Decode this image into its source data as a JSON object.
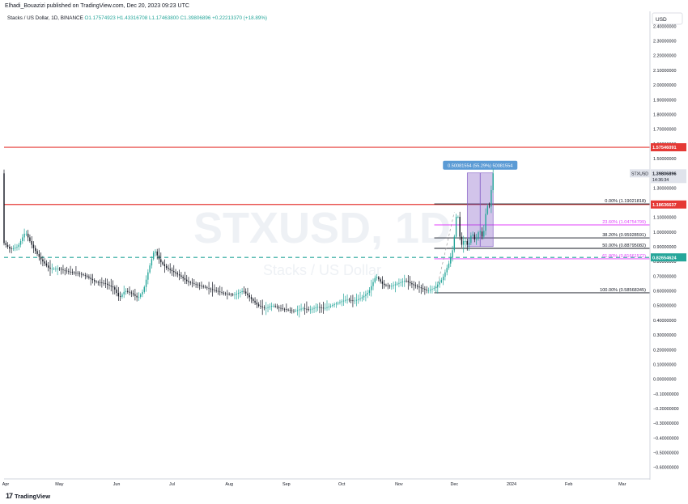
{
  "publisher": "Elhadi_Bouazizi published on TradingView.com, Dec 20, 2023 09:23 UTC",
  "symbol_line": {
    "name": "Stacks / US Dollar, 1D, BINANCE",
    "ohlc": "O1.17574923 H1.43316708 L1.17463800 C1.39806896 +0.22213370 (+18.89%)"
  },
  "currency_label": "USD",
  "watermark": {
    "main": "STXUSD, 1D",
    "sub": "Stacks / US Dollar"
  },
  "footer": {
    "logo_mark": "17",
    "logo_text": "TradingView"
  },
  "colors": {
    "up": "#26a69a",
    "down": "#131722",
    "red_line": "#e53935",
    "fib_pink": "#e040fb",
    "support": "#26a69a",
    "measure": "#7e57c2"
  },
  "chart_data": {
    "type": "candlestick",
    "ylim": [
      -0.68,
      2.5
    ],
    "y_ticks": [
      "2.40000000",
      "2.30000000",
      "2.20000000",
      "2.10000000",
      "2.00000000",
      "1.90000000",
      "1.80000000",
      "1.70000000",
      "1.60000000",
      "1.50000000",
      "1.40000000",
      "1.30000000",
      "1.20000000",
      "1.10000000",
      "1.00000000",
      "0.90000000",
      "0.80000000",
      "0.70000000",
      "0.60000000",
      "0.50000000",
      "0.40000000",
      "0.30000000",
      "0.20000000",
      "0.10000000",
      "0.00000000",
      "−0.10000000",
      "−0.20000000",
      "−0.30000000",
      "−0.40000000",
      "−0.50000000",
      "−0.60000000"
    ],
    "y_tick_values": [
      2.4,
      2.3,
      2.2,
      2.1,
      2.0,
      1.9,
      1.8,
      1.7,
      1.6,
      1.5,
      1.4,
      1.3,
      1.2,
      1.1,
      1.0,
      0.9,
      0.8,
      0.7,
      0.6,
      0.5,
      0.4,
      0.3,
      0.2,
      0.1,
      0.0,
      -0.1,
      -0.2,
      -0.3,
      -0.4,
      -0.5,
      -0.6
    ],
    "x_labels": [
      "Apr",
      "May",
      "Jun",
      "Jul",
      "Aug",
      "Sep",
      "Oct",
      "Nov",
      "Dec",
      "2024",
      "Feb",
      "Mar"
    ],
    "x_label_days": [
      0,
      30,
      61,
      91,
      122,
      153,
      183,
      214,
      244,
      275,
      306,
      335
    ],
    "x_range_days": [
      0,
      350
    ],
    "price_path": [
      [
        0,
        0.93
      ],
      [
        4,
        0.88
      ],
      [
        8,
        0.9
      ],
      [
        12,
        1.0
      ],
      [
        16,
        0.9
      ],
      [
        20,
        0.82
      ],
      [
        25,
        0.75
      ],
      [
        30,
        0.75
      ],
      [
        35,
        0.73
      ],
      [
        40,
        0.72
      ],
      [
        45,
        0.7
      ],
      [
        50,
        0.66
      ],
      [
        55,
        0.65
      ],
      [
        60,
        0.62
      ],
      [
        63,
        0.55
      ],
      [
        66,
        0.6
      ],
      [
        70,
        0.58
      ],
      [
        73,
        0.55
      ],
      [
        76,
        0.6
      ],
      [
        79,
        0.75
      ],
      [
        82,
        0.88
      ],
      [
        85,
        0.8
      ],
      [
        88,
        0.76
      ],
      [
        92,
        0.73
      ],
      [
        96,
        0.7
      ],
      [
        100,
        0.66
      ],
      [
        105,
        0.64
      ],
      [
        110,
        0.62
      ],
      [
        115,
        0.6
      ],
      [
        120,
        0.58
      ],
      [
        125,
        0.57
      ],
      [
        130,
        0.6
      ],
      [
        134,
        0.55
      ],
      [
        138,
        0.5
      ],
      [
        142,
        0.48
      ],
      [
        146,
        0.5
      ],
      [
        150,
        0.48
      ],
      [
        154,
        0.47
      ],
      [
        158,
        0.46
      ],
      [
        162,
        0.48
      ],
      [
        166,
        0.47
      ],
      [
        170,
        0.49
      ],
      [
        174,
        0.48
      ],
      [
        178,
        0.5
      ],
      [
        182,
        0.52
      ],
      [
        186,
        0.54
      ],
      [
        190,
        0.53
      ],
      [
        194,
        0.55
      ],
      [
        198,
        0.59
      ],
      [
        202,
        0.7
      ],
      [
        206,
        0.64
      ],
      [
        210,
        0.63
      ],
      [
        214,
        0.65
      ],
      [
        218,
        0.67
      ],
      [
        222,
        0.64
      ],
      [
        226,
        0.62
      ],
      [
        230,
        0.6
      ],
      [
        234,
        0.62
      ],
      [
        238,
        0.68
      ],
      [
        242,
        0.8
      ],
      [
        244,
        0.9
      ],
      [
        246,
        1.17
      ],
      [
        248,
        0.9
      ],
      [
        250,
        0.95
      ],
      [
        252,
        0.9
      ],
      [
        254,
        1.0
      ],
      [
        256,
        0.93
      ],
      [
        258,
        1.02
      ],
      [
        260,
        0.95
      ],
      [
        262,
        1.18
      ],
      [
        264,
        1.17
      ],
      [
        265,
        1.398
      ]
    ],
    "horizontal_lines": [
      {
        "name": "resistance-upper",
        "value": 1.57546091,
        "label": "1.57546091",
        "color": "#e53935"
      },
      {
        "name": "resistance-lower",
        "value": 1.18636637,
        "label": "1.18636637",
        "color": "#e53935"
      },
      {
        "name": "support",
        "value": 0.82654624,
        "label": "0.82654624",
        "color": "#26a69a",
        "dashed": true
      }
    ],
    "last_price": {
      "symbol": "STXUSD",
      "value": 1.39806896,
      "label": "1.39806896",
      "countdown": "14:36:34"
    },
    "fib": {
      "from_day": 234,
      "to_day": 262,
      "levels": [
        {
          "pct": "0.00%",
          "value": 1.19021818,
          "label": "0.00% (1.19021818)",
          "color": "#131722"
        },
        {
          "pct": "23.60%",
          "value": 1.04754799,
          "label": "23.60% (1.04754799)",
          "color": "#e040fb"
        },
        {
          "pct": "38.20%",
          "value": 0.95928591,
          "label": "38.20% (0.95928591)",
          "color": "#131722"
        },
        {
          "pct": "50.00%",
          "value": 0.88795082,
          "label": "50.00% (0.88795082)",
          "color": "#131722"
        },
        {
          "pct": "61.80%",
          "value": 0.81661572,
          "label": "61.80% (0.81661572)",
          "color": "#e040fb"
        },
        {
          "pct": "100.00%",
          "value": 0.58568345,
          "label": "100.00% (0.58568345)",
          "color": "#131722"
        }
      ]
    },
    "measure": {
      "from_day": 251,
      "to_day": 262,
      "low": 0.9,
      "high": 1.401,
      "label": "0.50081554 (55.29%) 50081554"
    }
  }
}
